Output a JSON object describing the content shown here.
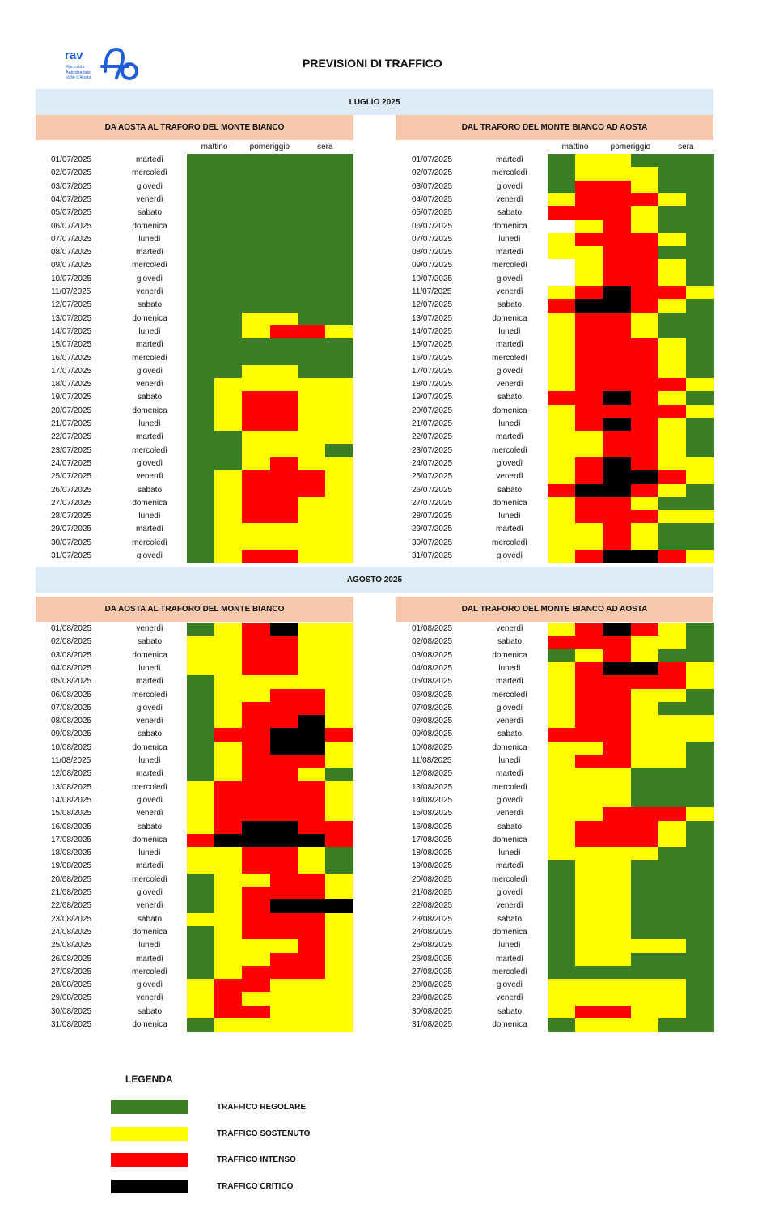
{
  "logo": {
    "rav": "rav",
    "sub": [
      "Raccordo",
      "Autostradale",
      "Valle d'Aosta"
    ]
  },
  "title": "PREVISIONI DI TRAFFICO",
  "columns": [
    "mattino",
    "pomeriggio",
    "sera"
  ],
  "colors": {
    "G": "#3a7d22",
    "Y": "#ffff00",
    "R": "#ff0000",
    "K": "#000000",
    "W": "#ffffff"
  },
  "months": [
    {
      "title": "LUGLIO 2025",
      "direction_left": "DA AOSTA AL TRAFORO DEL MONTE BIANCO",
      "direction_right": "DAL TRAFORO DEL MONTE BIANCO AD AOSTA",
      "days": [
        {
          "date": "01/07/2025",
          "weekday": "martedì",
          "left": "GGGGGG",
          "right": "GYYGGG"
        },
        {
          "date": "02/07/2025",
          "weekday": "mercoledì",
          "left": "GGGGGG",
          "right": "GYYYGG"
        },
        {
          "date": "03/07/2025",
          "weekday": "giovedì",
          "left": "GGGGGG",
          "right": "GRRYGG"
        },
        {
          "date": "04/07/2025",
          "weekday": "venerdì",
          "left": "GGGGGG",
          "right": "YRRRYG"
        },
        {
          "date": "05/07/2025",
          "weekday": "sabato",
          "left": "GGGGGG",
          "right": "RRRYGG"
        },
        {
          "date": "06/07/2025",
          "weekday": "domenica",
          "left": "GGGGGG",
          "right": "WYRYGG"
        },
        {
          "date": "07/07/2025",
          "weekday": "lunedì",
          "left": "GGGGGG",
          "right": "YRRRYG"
        },
        {
          "date": "08/07/2025",
          "weekday": "martedì",
          "left": "GGGGGG",
          "right": "YYRRGG"
        },
        {
          "date": "09/07/2025",
          "weekday": "mercoledì",
          "left": "GGGGGG",
          "right": "WYRRYG"
        },
        {
          "date": "10/07/2025",
          "weekday": "giovedì",
          "left": "GGGGGG",
          "right": "WYRRYG"
        },
        {
          "date": "11/07/2025",
          "weekday": "venerdì",
          "left": "GGGGGG",
          "right": "YRKRRY"
        },
        {
          "date": "12/07/2025",
          "weekday": "sabato",
          "left": "GGGGGG",
          "right": "RKKRYG"
        },
        {
          "date": "13/07/2025",
          "weekday": "domenica",
          "left": "GGYYGG",
          "right": "YRRYGG"
        },
        {
          "date": "14/07/2025",
          "weekday": "lunedì",
          "left": "GGYRRY",
          "right": "YRRYGG"
        },
        {
          "date": "15/07/2025",
          "weekday": "martedì",
          "left": "GGGGGG",
          "right": "YRRRYG"
        },
        {
          "date": "16/07/2025",
          "weekday": "mercoledì",
          "left": "GGGGGG",
          "right": "YRRRYG"
        },
        {
          "date": "17/07/2025",
          "weekday": "giovedì",
          "left": "GGYYGG",
          "right": "YRRRYG"
        },
        {
          "date": "18/07/2025",
          "weekday": "venerdì",
          "left": "GYYYYY",
          "right": "YRRRRY"
        },
        {
          "date": "19/07/2025",
          "weekday": "sabato",
          "left": "GYRRYY",
          "right": "RRKRYG"
        },
        {
          "date": "20/07/2025",
          "weekday": "domenica",
          "left": "GYRRYY",
          "right": "YRRRRY"
        },
        {
          "date": "21/07/2025",
          "weekday": "lunedì",
          "left": "GYRRYY",
          "right": "YRKRYG"
        },
        {
          "date": "22/07/2025",
          "weekday": "martedì",
          "left": "GGYYYY",
          "right": "YYRRYG"
        },
        {
          "date": "23/07/2025",
          "weekday": "mercoledì",
          "left": "GGYYYG",
          "right": "YYRRYG"
        },
        {
          "date": "24/07/2025",
          "weekday": "giovedì",
          "left": "GGYRYY",
          "right": "YRKRYY"
        },
        {
          "date": "25/07/2025",
          "weekday": "venerdì",
          "left": "GYRRRY",
          "right": "YRKKRY"
        },
        {
          "date": "26/07/2025",
          "weekday": "sabato",
          "left": "GYRRRY",
          "right": "RKKRYG"
        },
        {
          "date": "27/07/2025",
          "weekday": "domenica",
          "left": "GYRRYY",
          "right": "YRRYGG"
        },
        {
          "date": "28/07/2025",
          "weekday": "lunedì",
          "left": "GYRRYY",
          "right": "YRRRYY"
        },
        {
          "date": "29/07/2025",
          "weekday": "martedì",
          "left": "GYYYYY",
          "right": "YYRYGG"
        },
        {
          "date": "30/07/2025",
          "weekday": "mercoledì",
          "left": "GYYYYY",
          "right": "YYRYGG"
        },
        {
          "date": "31/07/2025",
          "weekday": "giovedì",
          "left": "GYRRYY",
          "right": "YRKKRY"
        }
      ]
    },
    {
      "title": "AGOSTO 2025",
      "direction_left": "DA AOSTA AL TRAFORO DEL MONTE BIANCO",
      "direction_right": "DAL TRAFORO DEL MONTE BIANCO AD AOSTA",
      "days": [
        {
          "date": "01/08/2025",
          "weekday": "venerdì",
          "left": "GYRKYY",
          "right": "YRKRYG"
        },
        {
          "date": "02/08/2025",
          "weekday": "sabato",
          "left": "YYRRYY",
          "right": "RRRYYG"
        },
        {
          "date": "03/08/2025",
          "weekday": "domenica",
          "left": "YYRRYY",
          "right": "GYRYGG"
        },
        {
          "date": "04/08/2025",
          "weekday": "lunedì",
          "left": "YYRRYY",
          "right": "YRKKRY"
        },
        {
          "date": "05/08/2025",
          "weekday": "martedì",
          "left": "GYYYYY",
          "right": "YRRRRY"
        },
        {
          "date": "06/08/2025",
          "weekday": "mercoledì",
          "left": "GYYRRY",
          "right": "YRRYYG"
        },
        {
          "date": "07/08/2025",
          "weekday": "giovedì",
          "left": "GYRRRY",
          "right": "YRRYGG"
        },
        {
          "date": "08/08/2025",
          "weekday": "venerdì",
          "left": "GYRRKY",
          "right": "YRRYYY"
        },
        {
          "date": "09/08/2025",
          "weekday": "sabato",
          "left": "GRRKKR",
          "right": "RRRYYY"
        },
        {
          "date": "10/08/2025",
          "weekday": "domenica",
          "left": "GYRKKY",
          "right": "YYRYYG"
        },
        {
          "date": "11/08/2025",
          "weekday": "lunedì",
          "left": "GYRRRY",
          "right": "YRRYYG"
        },
        {
          "date": "12/08/2025",
          "weekday": "martedì",
          "left": "GYRRYG",
          "right": "YYYGGG"
        },
        {
          "date": "13/08/2025",
          "weekday": "mercoledì",
          "left": "YRRRRY",
          "right": "YYYGGG"
        },
        {
          "date": "14/08/2025",
          "weekday": "giovedì",
          "left": "YRRRRY",
          "right": "YYYGGG"
        },
        {
          "date": "15/08/2025",
          "weekday": "venerdì",
          "left": "YRRRRY",
          "right": "YYRRRY"
        },
        {
          "date": "16/08/2025",
          "weekday": "sabato",
          "left": "YRKKRR",
          "right": "YRRRYG"
        },
        {
          "date": "17/08/2025",
          "weekday": "domenica",
          "left": "RKKKKR",
          "right": "YRRRYG"
        },
        {
          "date": "18/08/2025",
          "weekday": "lunedì",
          "left": "YYRRYG",
          "right": "YYYYGG"
        },
        {
          "date": "19/08/2025",
          "weekday": "martedì",
          "left": "YYRRYG",
          "right": "GYYGGG"
        },
        {
          "date": "20/08/2025",
          "weekday": "mercoledì",
          "left": "GYYRRY",
          "right": "GYYGGG"
        },
        {
          "date": "21/08/2025",
          "weekday": "giovedì",
          "left": "GYRRRY",
          "right": "GYYGGG"
        },
        {
          "date": "22/08/2025",
          "weekday": "venerdì",
          "left": "GYRKKK",
          "right": "GYYGGG"
        },
        {
          "date": "23/08/2025",
          "weekday": "sabato",
          "left": "YYRRRY",
          "right": "GYYGGG"
        },
        {
          "date": "24/08/2025",
          "weekday": "domenica",
          "left": "GYRRRY",
          "right": "GYYGGG"
        },
        {
          "date": "25/08/2025",
          "weekday": "lunedì",
          "left": "GYYYRY",
          "right": "GYYYYG"
        },
        {
          "date": "26/08/2025",
          "weekday": "martedì",
          "left": "GYYRRY",
          "right": "GYYGGG"
        },
        {
          "date": "27/08/2025",
          "weekday": "mercoledì",
          "left": "GYRRRY",
          "right": "GGGGGG"
        },
        {
          "date": "28/08/2025",
          "weekday": "giovedì",
          "left": "YRRYYY",
          "right": "YYYYYG"
        },
        {
          "date": "29/08/2025",
          "weekday": "venerdì",
          "left": "YRYYYY",
          "right": "YYYYYG"
        },
        {
          "date": "30/08/2025",
          "weekday": "sabato",
          "left": "YRRYYY",
          "right": "YRRYYG"
        },
        {
          "date": "31/08/2025",
          "weekday": "domenica",
          "left": "GYYYYY",
          "right": "GYYYGG"
        }
      ]
    }
  ],
  "legend": {
    "title": "LEGENDA",
    "items": [
      {
        "label": "TRAFFICO REGOLARE",
        "color": "#3a7d22"
      },
      {
        "label": "TRAFFICO SOSTENUTO",
        "color": "#ffff00"
      },
      {
        "label": "TRAFFICO INTENSO",
        "color": "#ff0000"
      },
      {
        "label": "TRAFFICO CRITICO",
        "color": "#000000"
      }
    ]
  }
}
